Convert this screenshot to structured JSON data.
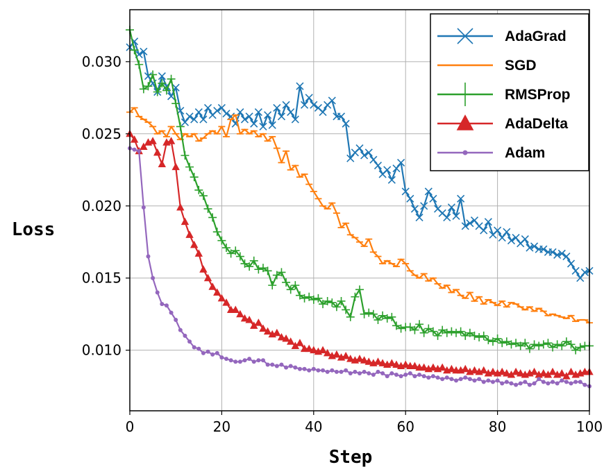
{
  "chart_data": {
    "type": "line",
    "title": "",
    "xlabel": "Step",
    "ylabel": "Loss",
    "xlim": [
      0,
      100
    ],
    "ylim": [
      0.0058,
      0.0336
    ],
    "xticks": [
      0,
      20,
      40,
      60,
      80,
      100
    ],
    "xtick_labels": [
      "0",
      "20",
      "40",
      "60",
      "80",
      "100"
    ],
    "yticks": [
      0.01,
      0.015,
      0.02,
      0.025,
      0.03
    ],
    "ytick_labels": [
      "0.010",
      "0.015",
      "0.020",
      "0.025",
      "0.030"
    ],
    "grid": true,
    "legend_position": "top-right",
    "series": [
      {
        "name": "AdaGrad",
        "color": "#1f77b4",
        "marker": "x",
        "values": [
          0.031,
          0.0314,
          0.0305,
          0.0307,
          0.029,
          0.0285,
          0.0279,
          0.029,
          0.0283,
          0.0276,
          0.0282,
          0.0266,
          0.0258,
          0.0262,
          0.026,
          0.0265,
          0.026,
          0.0268,
          0.0263,
          0.0266,
          0.0268,
          0.0264,
          0.0262,
          0.0257,
          0.0265,
          0.026,
          0.0262,
          0.0257,
          0.0265,
          0.0255,
          0.0263,
          0.0256,
          0.0268,
          0.0262,
          0.027,
          0.0265,
          0.026,
          0.0283,
          0.027,
          0.0275,
          0.027,
          0.0268,
          0.0265,
          0.027,
          0.0273,
          0.0262,
          0.0262,
          0.0257,
          0.0233,
          0.0237,
          0.024,
          0.0235,
          0.0237,
          0.0232,
          0.0228,
          0.0222,
          0.0225,
          0.0218,
          0.0226,
          0.023,
          0.021,
          0.0205,
          0.0198,
          0.0192,
          0.02,
          0.021,
          0.0205,
          0.0198,
          0.0195,
          0.0192,
          0.0199,
          0.0193,
          0.0205,
          0.0186,
          0.0188,
          0.019,
          0.0186,
          0.0183,
          0.0189,
          0.018,
          0.0183,
          0.0178,
          0.0182,
          0.0176,
          0.0178,
          0.0174,
          0.0177,
          0.0171,
          0.0172,
          0.017,
          0.017,
          0.0168,
          0.0168,
          0.0166,
          0.0167,
          0.0165,
          0.016,
          0.0155,
          0.015,
          0.0154,
          0.0155
        ]
      },
      {
        "name": "SGD",
        "color": "#ff7f0e",
        "marker": "_",
        "values": [
          0.0265,
          0.0268,
          0.0262,
          0.026,
          0.0258,
          0.0255,
          0.025,
          0.0252,
          0.0248,
          0.0255,
          0.025,
          0.0246,
          0.025,
          0.0248,
          0.025,
          0.0245,
          0.0247,
          0.025,
          0.0252,
          0.025,
          0.0255,
          0.0248,
          0.026,
          0.0263,
          0.025,
          0.0253,
          0.025,
          0.0252,
          0.0248,
          0.025,
          0.0245,
          0.0248,
          0.024,
          0.023,
          0.0238,
          0.0225,
          0.0228,
          0.022,
          0.0222,
          0.0215,
          0.021,
          0.0205,
          0.02,
          0.0198,
          0.0202,
          0.0195,
          0.0185,
          0.0188,
          0.018,
          0.0178,
          0.0175,
          0.0172,
          0.0177,
          0.0168,
          0.0165,
          0.016,
          0.0162,
          0.016,
          0.0158,
          0.0163,
          0.016,
          0.0155,
          0.0152,
          0.015,
          0.0153,
          0.0148,
          0.015,
          0.0146,
          0.0143,
          0.0145,
          0.014,
          0.0142,
          0.0138,
          0.0136,
          0.014,
          0.0134,
          0.0137,
          0.0132,
          0.0135,
          0.0133,
          0.0131,
          0.0134,
          0.013,
          0.0133,
          0.0132,
          0.013,
          0.0128,
          0.013,
          0.0127,
          0.0129,
          0.0127,
          0.0124,
          0.0125,
          0.0124,
          0.0123,
          0.0122,
          0.0124,
          0.012,
          0.0121,
          0.0121,
          0.0119
        ]
      },
      {
        "name": "RMSProp",
        "color": "#2ca02c",
        "marker": "+",
        "values": [
          0.0322,
          0.0308,
          0.0298,
          0.0281,
          0.0283,
          0.0291,
          0.0279,
          0.0285,
          0.028,
          0.0288,
          0.0271,
          0.0255,
          0.0235,
          0.0227,
          0.022,
          0.0211,
          0.0207,
          0.0198,
          0.0192,
          0.0182,
          0.0176,
          0.0171,
          0.0167,
          0.0169,
          0.0165,
          0.016,
          0.0158,
          0.0162,
          0.0156,
          0.0157,
          0.0155,
          0.0145,
          0.0152,
          0.0154,
          0.0147,
          0.0142,
          0.0145,
          0.0138,
          0.0136,
          0.0137,
          0.0135,
          0.0136,
          0.0132,
          0.0134,
          0.0133,
          0.013,
          0.0134,
          0.0128,
          0.0123,
          0.0137,
          0.0142,
          0.0125,
          0.0126,
          0.0125,
          0.0121,
          0.0124,
          0.0122,
          0.0123,
          0.0117,
          0.0115,
          0.0116,
          0.0116,
          0.0114,
          0.0118,
          0.0112,
          0.0115,
          0.0113,
          0.011,
          0.0114,
          0.0112,
          0.0113,
          0.0112,
          0.0113,
          0.011,
          0.0112,
          0.011,
          0.0109,
          0.011,
          0.0107,
          0.0106,
          0.0108,
          0.0105,
          0.0106,
          0.0104,
          0.0105,
          0.0103,
          0.0105,
          0.0101,
          0.0104,
          0.0103,
          0.0104,
          0.0105,
          0.0102,
          0.0104,
          0.0103,
          0.0106,
          0.0104,
          0.01,
          0.0102,
          0.0103,
          0.0103
        ]
      },
      {
        "name": "AdaDelta",
        "color": "#d62728",
        "marker": "^",
        "values": [
          0.025,
          0.0246,
          0.0238,
          0.0241,
          0.0244,
          0.0245,
          0.0237,
          0.0229,
          0.0244,
          0.0245,
          0.0227,
          0.0199,
          0.0189,
          0.018,
          0.0173,
          0.0167,
          0.0156,
          0.015,
          0.0144,
          0.014,
          0.0136,
          0.0133,
          0.0128,
          0.0128,
          0.0125,
          0.0122,
          0.0121,
          0.0117,
          0.0119,
          0.0115,
          0.0113,
          0.0111,
          0.0112,
          0.0109,
          0.0108,
          0.0106,
          0.0103,
          0.0105,
          0.0101,
          0.0101,
          0.01,
          0.0099,
          0.01,
          0.0098,
          0.0096,
          0.0097,
          0.0095,
          0.0096,
          0.0094,
          0.0093,
          0.0094,
          0.0093,
          0.0092,
          0.0091,
          0.0092,
          0.0091,
          0.009,
          0.0091,
          0.009,
          0.0089,
          0.009,
          0.0089,
          0.0089,
          0.0088,
          0.0088,
          0.0087,
          0.0088,
          0.0087,
          0.0088,
          0.0086,
          0.0087,
          0.0086,
          0.0086,
          0.0087,
          0.0085,
          0.0086,
          0.0085,
          0.0086,
          0.0084,
          0.0085,
          0.0084,
          0.0085,
          0.0084,
          0.0083,
          0.0085,
          0.0084,
          0.0083,
          0.0084,
          0.0085,
          0.0083,
          0.0084,
          0.0083,
          0.0085,
          0.0083,
          0.0084,
          0.0082,
          0.0085,
          0.0083,
          0.0084,
          0.0085,
          0.0085
        ]
      },
      {
        "name": "Adam",
        "color": "#9467bd",
        "marker": ".",
        "values": [
          0.024,
          0.0239,
          0.0238,
          0.0199,
          0.0165,
          0.015,
          0.014,
          0.0132,
          0.0131,
          0.0126,
          0.0121,
          0.0114,
          0.011,
          0.0106,
          0.0102,
          0.0101,
          0.0098,
          0.0099,
          0.0097,
          0.0098,
          0.0095,
          0.0094,
          0.0093,
          0.0092,
          0.0092,
          0.0093,
          0.0094,
          0.0092,
          0.0093,
          0.0093,
          0.009,
          0.009,
          0.0089,
          0.009,
          0.0088,
          0.0089,
          0.0088,
          0.0087,
          0.0087,
          0.0086,
          0.0087,
          0.0086,
          0.0086,
          0.0085,
          0.0086,
          0.0085,
          0.0085,
          0.0086,
          0.0084,
          0.0085,
          0.0084,
          0.0085,
          0.0084,
          0.0083,
          0.0085,
          0.0084,
          0.0082,
          0.0084,
          0.0083,
          0.0082,
          0.0083,
          0.0084,
          0.0082,
          0.0083,
          0.0082,
          0.0081,
          0.0082,
          0.0081,
          0.008,
          0.0081,
          0.008,
          0.0079,
          0.008,
          0.0081,
          0.008,
          0.0079,
          0.008,
          0.0078,
          0.0079,
          0.0078,
          0.0079,
          0.0077,
          0.0078,
          0.0077,
          0.0076,
          0.0077,
          0.0078,
          0.0076,
          0.0077,
          0.008,
          0.0078,
          0.0077,
          0.0078,
          0.0077,
          0.0079,
          0.0078,
          0.0077,
          0.0078,
          0.0078,
          0.0076,
          0.0075
        ]
      }
    ]
  }
}
